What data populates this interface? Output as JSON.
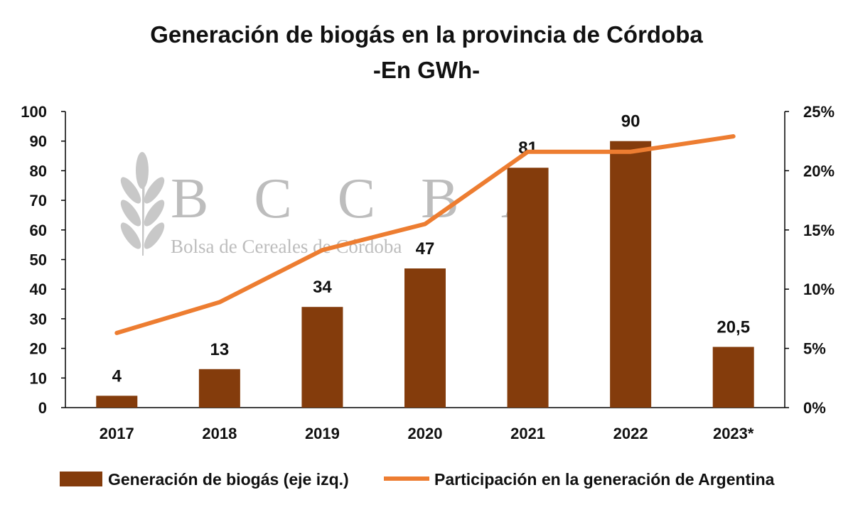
{
  "chart_data": {
    "type": "bar",
    "title_line1": "Generación de biogás en la provincia de Córdoba",
    "title_line2": "-En GWh-",
    "categories": [
      "2017",
      "2018",
      "2019",
      "2020",
      "2021",
      "2022",
      "2023*"
    ],
    "series": [
      {
        "name": "Generación de biogás (eje izq.)",
        "type": "bar",
        "axis": "left",
        "color": "#843C0C",
        "values": [
          4,
          13,
          34,
          47,
          81,
          90,
          20.5
        ],
        "data_labels": [
          "4",
          "13",
          "34",
          "47",
          "81",
          "90",
          "20,5"
        ]
      },
      {
        "name": "Participación en la generación de Argentina",
        "type": "line",
        "axis": "right",
        "color": "#ED7D31",
        "values": [
          0.063,
          0.089,
          0.133,
          0.155,
          0.216,
          0.216,
          0.229
        ]
      }
    ],
    "y_left": {
      "min": 0,
      "max": 100,
      "ticks": [
        0,
        10,
        20,
        30,
        40,
        50,
        60,
        70,
        80,
        90,
        100
      ]
    },
    "y_right": {
      "min": 0,
      "max": 0.25,
      "ticks": [
        "0%",
        "5%",
        "10%",
        "15%",
        "20%",
        "25%"
      ]
    },
    "legend_position": "bottom",
    "grid": false
  },
  "watermark": {
    "name": "B C C B A",
    "subtitle": "Bolsa de Cereales de Córdoba"
  }
}
